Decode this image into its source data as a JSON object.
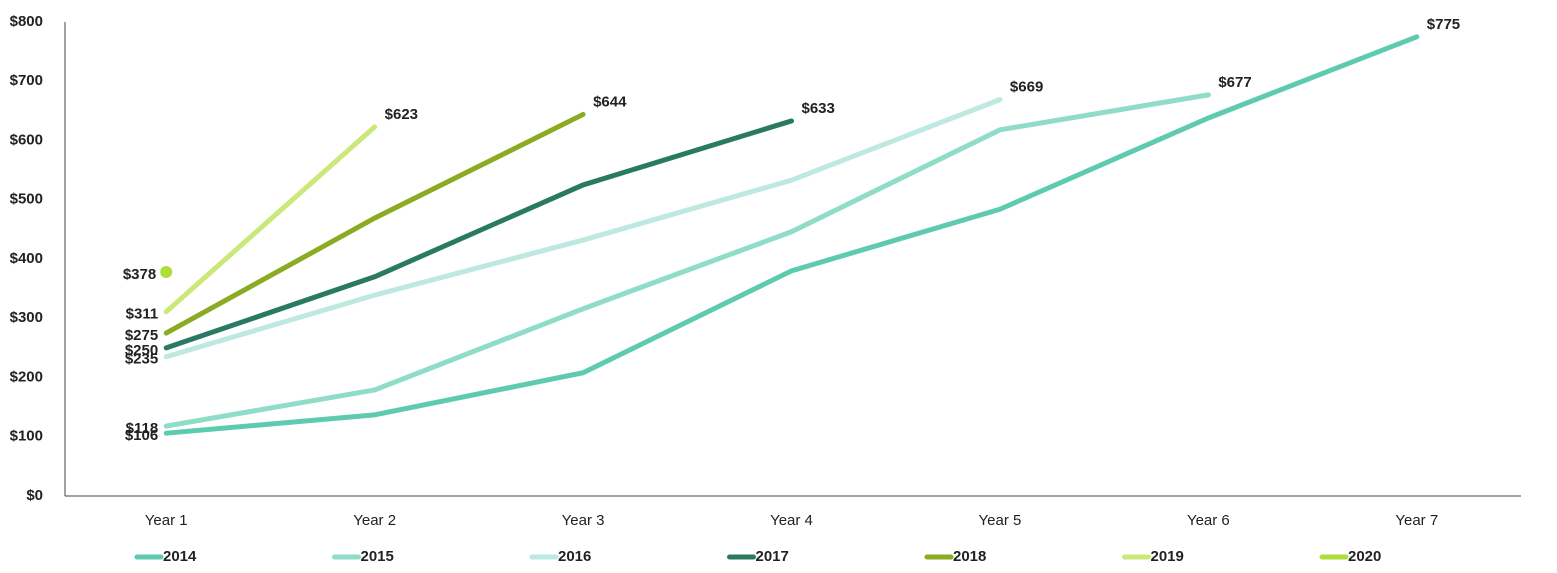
{
  "chart_data": {
    "type": "line",
    "categories": [
      "Year 1",
      "Year 2",
      "Year 3",
      "Year 4",
      "Year 5",
      "Year 6",
      "Year 7"
    ],
    "series": [
      {
        "name": "2014",
        "color": "#5ecbb0",
        "values": [
          106,
          137,
          208,
          380,
          484,
          638,
          775
        ],
        "value_labels": [
          "$106",
          null,
          null,
          null,
          null,
          null,
          "$775"
        ]
      },
      {
        "name": "2015",
        "color": "#8fdcc8",
        "values": [
          118,
          179,
          316,
          446,
          618,
          677,
          null
        ],
        "value_labels": [
          "$118",
          null,
          null,
          null,
          null,
          "$677",
          null
        ]
      },
      {
        "name": "2016",
        "color": "#bde9e0",
        "values": [
          235,
          339,
          432,
          533,
          669,
          null,
          null
        ],
        "value_labels": [
          "$235",
          null,
          null,
          null,
          "$669",
          null,
          null
        ]
      },
      {
        "name": "2017",
        "color": "#2a7a63",
        "values": [
          250,
          370,
          525,
          633,
          null,
          null,
          null
        ],
        "value_labels": [
          "$250",
          null,
          null,
          "$633",
          null,
          null,
          null
        ]
      },
      {
        "name": "2018",
        "color": "#8aab22",
        "values": [
          275,
          469,
          644,
          null,
          null,
          null,
          null
        ],
        "value_labels": [
          "$275",
          null,
          "$644",
          null,
          null,
          null,
          null
        ]
      },
      {
        "name": "2019",
        "color": "#cbe87a",
        "values": [
          311,
          623,
          null,
          null,
          null,
          null,
          null
        ],
        "value_labels": [
          "$311",
          "$623",
          null,
          null,
          null,
          null,
          null
        ]
      },
      {
        "name": "2020",
        "color": "#aedc3a",
        "values": [
          378,
          null,
          null,
          null,
          null,
          null,
          null
        ],
        "value_labels": [
          "$378",
          null,
          null,
          null,
          null,
          null,
          null
        ]
      }
    ],
    "ylim": [
      0,
      800
    ],
    "yticks": [
      {
        "value": 0,
        "label": "$0"
      },
      {
        "value": 100,
        "label": "$100"
      },
      {
        "value": 200,
        "label": "$200"
      },
      {
        "value": 300,
        "label": "$300"
      },
      {
        "value": 400,
        "label": "$400"
      },
      {
        "value": 500,
        "label": "$500"
      },
      {
        "value": 600,
        "label": "$600"
      },
      {
        "value": 700,
        "label": "$700"
      },
      {
        "value": 800,
        "label": "$800"
      }
    ],
    "grid": false,
    "legend": "bottom"
  }
}
